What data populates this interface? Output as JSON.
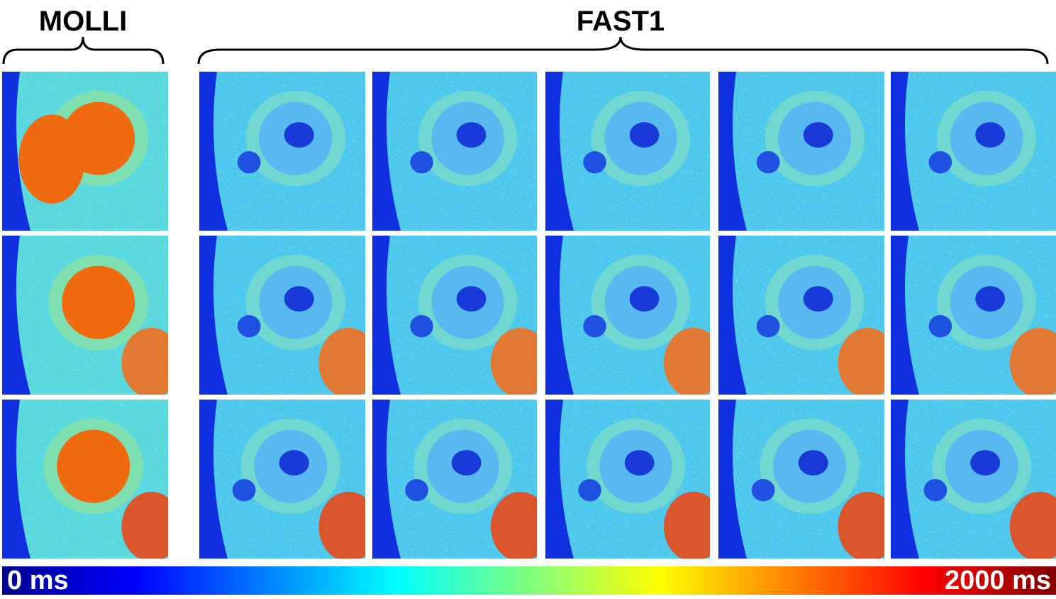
{
  "header": {
    "left_label": "MOLLI",
    "right_label": "FAST1"
  },
  "colorbar": {
    "min_label": "0 ms",
    "max_label": "2000 ms"
  }
}
